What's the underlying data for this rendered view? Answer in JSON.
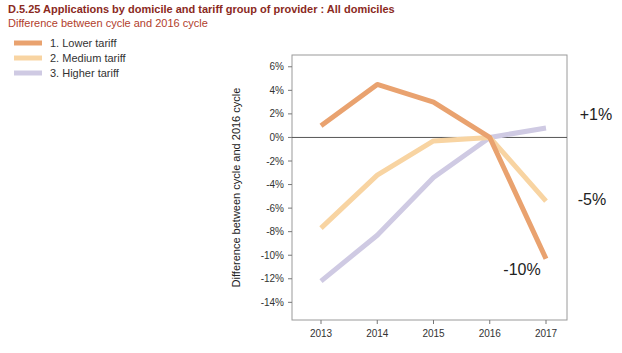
{
  "chart_data": {
    "type": "line",
    "title": "D.5.25 Applications by domicile and tariff group of provider : All domiciles",
    "subtitle": "Difference between cycle and 2016 cycle",
    "y_label": "Difference between cycle and 2016 cycle",
    "categories": [
      "2013",
      "2014",
      "2015",
      "2016",
      "2017"
    ],
    "series": [
      {
        "name": "1. Lower tariff",
        "color": "#e9a26f",
        "values": [
          1.0,
          4.5,
          3.0,
          0,
          -10.3
        ]
      },
      {
        "name": "2. Medium tariff",
        "color": "#f8d4a2",
        "values": [
          -7.7,
          -3.2,
          -0.3,
          0,
          -5.4
        ]
      },
      {
        "name": "3. Higher tariff",
        "color": "#cfcae3",
        "values": [
          -12.2,
          -8.3,
          -3.4,
          0,
          0.8
        ]
      }
    ],
    "ylim": [
      -15.5,
      7
    ],
    "yticks": [
      {
        "value": 6,
        "label": "6%"
      },
      {
        "value": 4,
        "label": "4%"
      },
      {
        "value": 2,
        "label": "2%"
      },
      {
        "value": 0,
        "label": "0%"
      },
      {
        "value": -2,
        "label": "-2%"
      },
      {
        "value": -4,
        "label": "-4%"
      },
      {
        "value": -6,
        "label": "-6%"
      },
      {
        "value": -8,
        "label": "-8%"
      },
      {
        "value": -10,
        "label": "-10%"
      },
      {
        "value": -12,
        "label": "-12%"
      },
      {
        "value": -14,
        "label": "-14%"
      }
    ],
    "annotations": [
      {
        "text": "+1%",
        "series": "3. Higher tariff"
      },
      {
        "text": "-5%",
        "series": "2. Medium tariff"
      },
      {
        "text": "-10%",
        "series": "1. Lower tariff"
      }
    ],
    "grid": false,
    "legend": "top-left"
  }
}
